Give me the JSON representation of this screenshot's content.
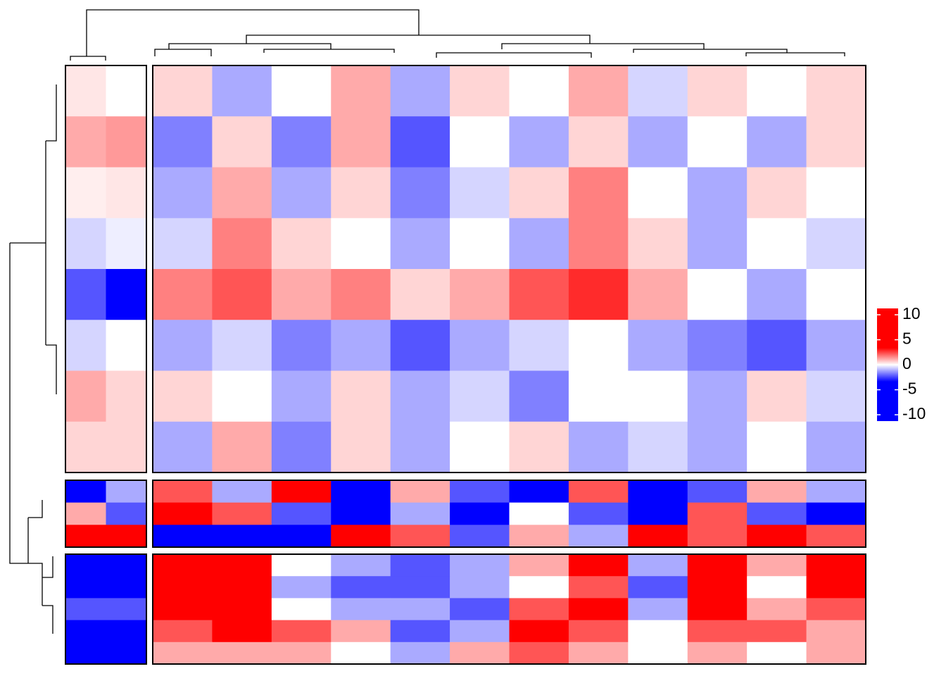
{
  "chart_data": {
    "type": "heatmap",
    "clim": [
      -10,
      10
    ],
    "color_breaks": [
      -3,
      0,
      3
    ],
    "colors": [
      "#0000ff",
      "#ffffff",
      "#ff0000"
    ],
    "legend_ticks": [
      10,
      5,
      0,
      -5,
      -10
    ],
    "legend": "right",
    "panels": [
      {
        "values": [
          [
            0.3,
            0
          ],
          [
            1,
            1.2
          ],
          [
            0.2,
            0.3
          ],
          [
            -0.5,
            -0.2
          ],
          [
            -2,
            -3
          ],
          [
            -0.5,
            0
          ],
          [
            1,
            0.5
          ],
          [
            0.5,
            0.5
          ]
        ]
      },
      {
        "values": [
          [
            0.5,
            -1,
            0,
            1,
            -1,
            0.5,
            0,
            1,
            -0.5,
            0.5,
            0,
            0.5
          ],
          [
            -1.5,
            0.5,
            -1.5,
            1,
            -2,
            0,
            -1,
            0.5,
            -1,
            0,
            -1,
            0.5
          ],
          [
            -1,
            1,
            -1,
            0.5,
            -1.5,
            -0.5,
            0.5,
            1.5,
            0,
            -1,
            0.5,
            0
          ],
          [
            -0.5,
            1.5,
            0.5,
            0,
            -1,
            0,
            -1,
            1.5,
            0.5,
            -1,
            0,
            -0.5
          ],
          [
            1.5,
            2,
            1,
            1.5,
            0.5,
            1,
            2,
            2.5,
            1,
            0,
            -1,
            0
          ],
          [
            -1,
            -0.5,
            -1.5,
            -1,
            -2,
            -1,
            -0.5,
            0,
            -1,
            -1.5,
            -2,
            -1
          ],
          [
            0.5,
            0,
            -1,
            0.5,
            -1,
            -0.5,
            -1.5,
            0,
            0,
            -1,
            0.5,
            -0.5
          ],
          [
            -1,
            1,
            -1.5,
            0.5,
            -1,
            0,
            0.5,
            -1,
            -0.5,
            -1,
            0,
            -1
          ]
        ]
      },
      {
        "values": [
          [
            -4,
            -1
          ],
          [
            1,
            -2
          ],
          [
            4,
            5
          ]
        ]
      },
      {
        "values": [
          [
            2,
            -1,
            3,
            -3,
            1,
            -2,
            -4,
            2,
            -3,
            -2,
            1,
            -1
          ],
          [
            3,
            2,
            -2,
            -3,
            -1,
            -4,
            0,
            -2,
            -4,
            2,
            -2,
            -3
          ],
          [
            -3,
            -5,
            -4,
            3,
            2,
            -2,
            1,
            -1,
            3,
            2,
            4,
            2
          ]
        ]
      },
      {
        "values": [
          [
            -5,
            -5
          ],
          [
            -3,
            -3
          ],
          [
            -2,
            -2
          ],
          [
            -8,
            -8
          ],
          [
            -5,
            -5
          ]
        ]
      },
      {
        "values": [
          [
            5,
            6,
            0,
            -1,
            -2,
            -1,
            1,
            3,
            -1,
            4,
            1,
            3
          ],
          [
            4,
            6,
            -1,
            -2,
            -2,
            -1,
            0,
            2,
            -2,
            3,
            0,
            3
          ],
          [
            4,
            5,
            0,
            -1,
            -1,
            -2,
            2,
            3,
            -1,
            3,
            1,
            2
          ],
          [
            2,
            5,
            2,
            1,
            -2,
            -1,
            4,
            2,
            0,
            2,
            2,
            1
          ],
          [
            1,
            1,
            1,
            0,
            -1,
            1,
            2,
            1,
            0,
            1,
            0,
            1
          ]
        ]
      }
    ]
  }
}
